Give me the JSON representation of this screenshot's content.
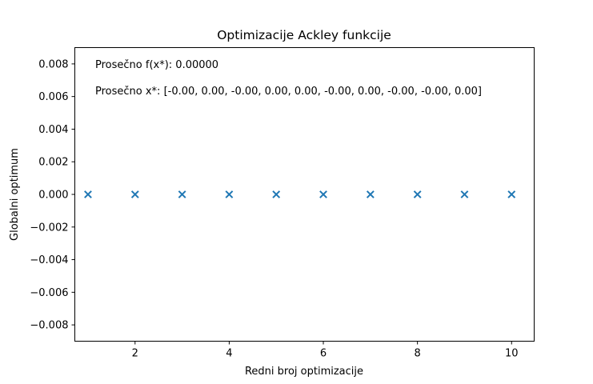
{
  "chart_data": {
    "type": "scatter",
    "title": "Optimizacije Ackley funkcije",
    "xlabel": "Redni broj optimizacije",
    "ylabel": "Globalni optimum",
    "xlim": [
      0.72,
      10.48
    ],
    "ylim": [
      -0.009,
      0.009
    ],
    "x_ticks": [
      2,
      4,
      6,
      8,
      10
    ],
    "x_tick_labels": [
      "2",
      "4",
      "6",
      "8",
      "10"
    ],
    "y_ticks": [
      0.008,
      0.006,
      0.004,
      0.002,
      0.0,
      -0.002,
      -0.004,
      -0.006,
      -0.008
    ],
    "y_tick_labels": [
      "0.008",
      "0.006",
      "0.004",
      "0.002",
      "0.000",
      "−0.002",
      "−0.004",
      "−0.006",
      "−0.008"
    ],
    "grid": false,
    "marker": "x",
    "color": "#1f77b4",
    "x": [
      1,
      2,
      3,
      4,
      5,
      6,
      7,
      8,
      9,
      10
    ],
    "y": [
      0,
      0,
      0,
      0,
      0,
      0,
      0,
      0,
      0,
      0
    ],
    "annotations": [
      "Prosečno f(x*): 0.00000",
      "Prosečno x*: [-0.00, 0.00, -0.00, 0.00, 0.00, -0.00, 0.00, -0.00, -0.00, 0.00]"
    ]
  }
}
